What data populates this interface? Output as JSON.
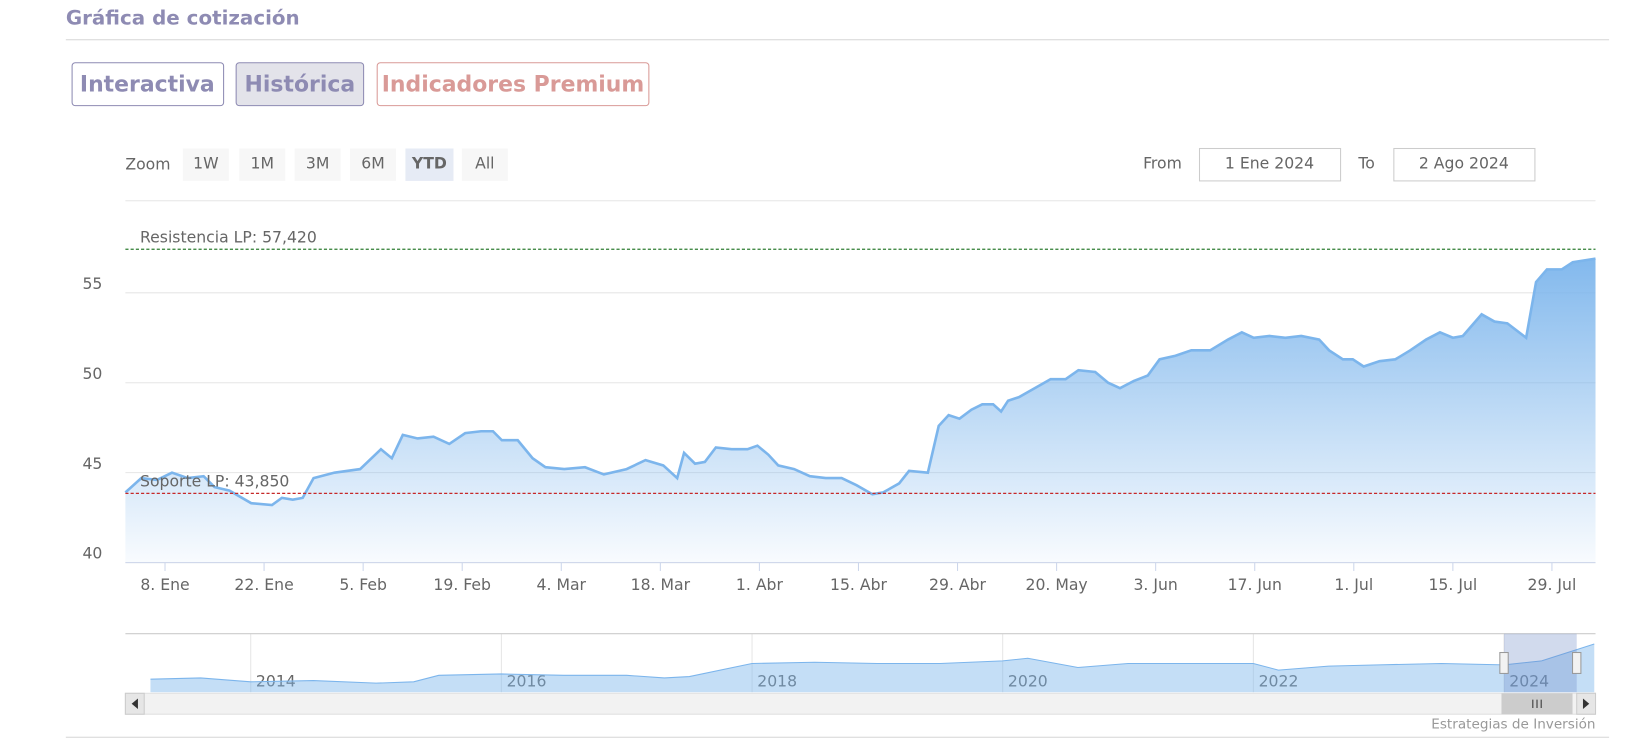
{
  "header": {
    "title": "Gráfica de cotización"
  },
  "tabs": [
    "Interactiva",
    "Histórica",
    "Indicadores Premium"
  ],
  "range_selector": {
    "label": "Zoom",
    "buttons": [
      "1W",
      "1M",
      "3M",
      "6M",
      "YTD",
      "All"
    ],
    "from_label": "From",
    "from": "1 Ene 2024",
    "to_label": "To",
    "to": "2 Ago 2024"
  },
  "credit": "Estrategias de Inversión",
  "chart_data": [
    {
      "type": "area",
      "color": "#7cb5ec",
      "x": [
        0,
        1.6,
        3.2,
        4.7,
        6.3,
        7.9,
        9.0,
        10.5,
        12.7,
        14.8,
        15.8,
        16.9,
        17.9,
        19.0,
        21.1,
        23.7,
        25.8,
        26.9,
        28.0,
        29.5,
        31.1,
        32.7,
        34.3,
        35.9,
        37.1,
        38.0,
        39.6,
        41.1,
        42.4,
        44.3,
        46.4,
        48.3,
        50.6,
        52.5,
        54.3,
        55.7,
        56.4,
        57.5,
        58.5,
        59.6,
        61.2,
        62.8,
        63.8,
        64.9,
        65.9,
        67.5,
        69.1,
        70.7,
        72.3,
        73.8,
        75.4,
        76.5,
        78.1,
        79.1,
        81.0,
        82.1,
        83.1,
        84.2,
        85.4,
        86.5,
        87.6,
        88.4,
        89.1,
        90.2,
        91.8,
        93.4,
        94.9,
        96.2,
        97.9,
        99.2,
        100.4,
        101.8,
        103.2,
        104.4,
        106.0,
        107.6,
        109.5,
        111.3,
        112.7,
        113.9,
        115.5,
        117.1,
        118.7,
        120.5,
        121.5,
        122.9,
        123.9,
        125.0,
        126.6,
        128.2,
        129.7,
        131.3,
        132.7,
        134.0,
        135.0,
        136.9,
        138.2,
        139.5,
        141.4,
        142.4,
        143.5,
        145.0,
        146.1,
        148.4
      ],
      "values": [
        43.9,
        44.7,
        44.6,
        45.0,
        44.7,
        44.8,
        44.2,
        44.0,
        43.3,
        43.2,
        43.6,
        43.5,
        43.6,
        44.7,
        45.0,
        45.2,
        46.3,
        45.8,
        47.1,
        46.9,
        47.0,
        46.6,
        47.2,
        47.3,
        47.3,
        46.8,
        46.8,
        45.8,
        45.3,
        45.2,
        45.3,
        44.9,
        45.2,
        45.7,
        45.4,
        44.7,
        46.1,
        45.5,
        45.6,
        46.4,
        46.3,
        46.3,
        46.5,
        46.0,
        45.4,
        45.2,
        44.8,
        44.7,
        44.7,
        44.3,
        43.8,
        43.9,
        44.4,
        45.1,
        45.0,
        47.6,
        48.2,
        48.0,
        48.5,
        48.8,
        48.8,
        48.4,
        49.0,
        49.2,
        49.7,
        50.2,
        50.2,
        50.7,
        50.6,
        50.0,
        49.7,
        50.1,
        50.4,
        51.3,
        51.5,
        51.8,
        51.8,
        52.4,
        52.8,
        52.5,
        52.6,
        52.5,
        52.6,
        52.4,
        51.8,
        51.3,
        51.3,
        50.9,
        51.2,
        51.3,
        51.8,
        52.4,
        52.8,
        52.5,
        52.6,
        53.8,
        53.4,
        53.3,
        52.5,
        55.6,
        56.3,
        56.3,
        56.7,
        56.9
      ],
      "xlim": [
        0,
        148.4
      ],
      "xticks": [
        {
          "value": 4,
          "label": "8. Ene"
        },
        {
          "value": 14,
          "label": "22. Ene"
        },
        {
          "value": 24,
          "label": "5. Feb"
        },
        {
          "value": 34,
          "label": "19. Feb"
        },
        {
          "value": 44,
          "label": "4. Mar"
        },
        {
          "value": 54,
          "label": "18. Mar"
        },
        {
          "value": 64,
          "label": "1. Abr"
        },
        {
          "value": 74,
          "label": "15. Abr"
        },
        {
          "value": 84,
          "label": "29. Abr"
        },
        {
          "value": 94,
          "label": "20. May"
        },
        {
          "value": 104,
          "label": "3. Jun"
        },
        {
          "value": 114,
          "label": "17. Jun"
        },
        {
          "value": 124,
          "label": "1. Jul"
        },
        {
          "value": 134,
          "label": "15. Jul"
        },
        {
          "value": 144,
          "label": "29. Jul"
        }
      ],
      "ylim": [
        40,
        60
      ],
      "yticks": [
        40,
        45,
        50,
        55
      ],
      "grid": true,
      "annotations": [
        {
          "label": "Resistencia LP: 57,420",
          "value": 57.42,
          "color": "#2e7d32"
        },
        {
          "label": "Soporte LP: 43,850",
          "value": 43.85,
          "color": "#c62828"
        }
      ]
    },
    {
      "type": "area",
      "color": "#7cb5ec",
      "x": [
        2013.2,
        2013.6,
        2014.0,
        2014.5,
        2015.0,
        2015.3,
        2015.5,
        2016.0,
        2016.5,
        2017.0,
        2017.3,
        2017.5,
        2018.0,
        2018.5,
        2019.0,
        2019.5,
        2020.0,
        2020.2,
        2020.6,
        2021.0,
        2021.5,
        2022.0,
        2022.2,
        2022.6,
        2023.0,
        2023.5,
        2024.0,
        2024.3,
        2024.72
      ],
      "values": [
        30,
        31,
        28,
        29,
        27,
        28,
        33,
        34,
        33,
        33,
        31,
        32,
        42,
        43,
        42,
        42,
        44,
        46,
        39,
        42,
        42,
        42,
        37,
        40,
        41,
        42,
        41,
        44,
        57
      ],
      "xlim": [
        2013,
        2024.73
      ],
      "ylim": [
        20,
        60
      ],
      "xticks": [
        2014,
        2016,
        2018,
        2020,
        2022,
        2024
      ],
      "selection": [
        2024,
        2024.58
      ]
    }
  ]
}
